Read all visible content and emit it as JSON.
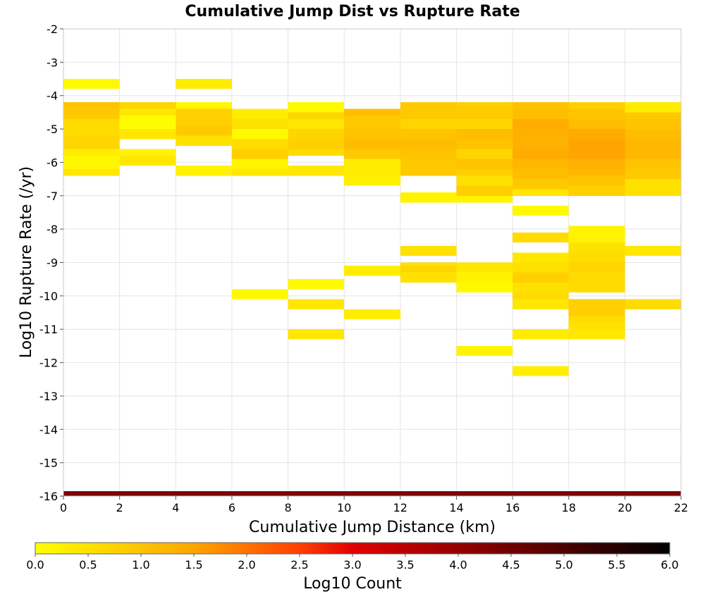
{
  "chart_data": {
    "type": "heatmap",
    "title": "Cumulative Jump Dist vs Rupture Rate",
    "xlabel": "Cumulative Jump Distance (km)",
    "ylabel": "Log10 Rupture Rate (/yr)",
    "xlim": [
      0,
      22
    ],
    "ylim": [
      -16,
      -2
    ],
    "x_bin_width": 2,
    "y_bin_height": 0.2,
    "grid": true,
    "x_ticks": [
      "0",
      "2",
      "4",
      "6",
      "8",
      "10",
      "12",
      "14",
      "16",
      "18",
      "20",
      "22"
    ],
    "y_ticks": [
      "-2",
      "-3",
      "-4",
      "-5",
      "-6",
      "-7",
      "-8",
      "-9",
      "-10",
      "-11",
      "-12",
      "-13",
      "-14",
      "-15",
      "-16"
    ],
    "colorbar": {
      "label": "Log10 Count",
      "range": [
        0,
        6
      ],
      "ticks": [
        "0.0",
        "0.5",
        "1.0",
        "1.5",
        "2.0",
        "2.5",
        "3.0",
        "3.5",
        "4.0",
        "4.5",
        "5.0",
        "5.5",
        "6.0"
      ],
      "stops": [
        {
          "value": 0.0,
          "color": "#ffff00"
        },
        {
          "value": 1.5,
          "color": "#ffa500"
        },
        {
          "value": 2.5,
          "color": "#ff4000"
        },
        {
          "value": 3.0,
          "color": "#e00000"
        },
        {
          "value": 4.5,
          "color": "#700000"
        },
        {
          "value": 6.0,
          "color": "#000000"
        }
      ]
    },
    "columns": [
      {
        "x_start": 0,
        "bins": [
          {
            "y_start": -3.8,
            "y_end": -3.5,
            "value": 0.1
          },
          {
            "y_start": -4.4,
            "y_end": -4.2,
            "value": 1.0
          },
          {
            "y_start": -4.7,
            "y_end": -4.4,
            "value": 0.9
          },
          {
            "y_start": -5.2,
            "y_end": -4.7,
            "value": 0.6
          },
          {
            "y_start": -5.6,
            "y_end": -5.2,
            "value": 0.7
          },
          {
            "y_start": -5.8,
            "y_end": -5.6,
            "value": 0.3
          },
          {
            "y_start": -6.2,
            "y_end": -5.8,
            "value": 0.15
          },
          {
            "y_start": -6.4,
            "y_end": -6.2,
            "value": 0.4
          }
        ]
      },
      {
        "x_start": 2,
        "bins": [
          {
            "y_start": -4.4,
            "y_end": -4.2,
            "value": 0.7
          },
          {
            "y_start": -4.6,
            "y_end": -4.4,
            "value": 0.4
          },
          {
            "y_start": -5.0,
            "y_end": -4.6,
            "value": 0.05
          },
          {
            "y_start": -5.3,
            "y_end": -5.0,
            "value": 0.4
          },
          {
            "y_start": -5.8,
            "y_end": -5.6,
            "value": 0.2
          },
          {
            "y_start": -6.1,
            "y_end": -5.8,
            "value": 0.4
          }
        ]
      },
      {
        "x_start": 4,
        "bins": [
          {
            "y_start": -3.8,
            "y_end": -3.5,
            "value": 0.3
          },
          {
            "y_start": -4.4,
            "y_end": -4.2,
            "value": 0.15
          },
          {
            "y_start": -4.9,
            "y_end": -4.4,
            "value": 0.8
          },
          {
            "y_start": -5.2,
            "y_end": -4.9,
            "value": 0.9
          },
          {
            "y_start": -5.5,
            "y_end": -5.2,
            "value": 0.5
          },
          {
            "y_start": -6.4,
            "y_end": -6.1,
            "value": 0.2
          }
        ]
      },
      {
        "x_start": 6,
        "bins": [
          {
            "y_start": -4.7,
            "y_end": -4.4,
            "value": 0.3
          },
          {
            "y_start": -5.0,
            "y_end": -4.7,
            "value": 0.5
          },
          {
            "y_start": -5.3,
            "y_end": -5.0,
            "value": 0.1
          },
          {
            "y_start": -5.6,
            "y_end": -5.3,
            "value": 0.6
          },
          {
            "y_start": -5.9,
            "y_end": -5.6,
            "value": 0.8
          },
          {
            "y_start": -6.2,
            "y_end": -5.9,
            "value": 0.2
          },
          {
            "y_start": -6.4,
            "y_end": -6.2,
            "value": 0.4
          },
          {
            "y_start": -10.1,
            "y_end": -9.8,
            "value": 0.1
          }
        ]
      },
      {
        "x_start": 8,
        "bins": [
          {
            "y_start": -4.5,
            "y_end": -4.2,
            "value": 0.1
          },
          {
            "y_start": -4.7,
            "y_end": -4.5,
            "value": 0.7
          },
          {
            "y_start": -5.0,
            "y_end": -4.7,
            "value": 0.4
          },
          {
            "y_start": -5.3,
            "y_end": -5.0,
            "value": 0.7
          },
          {
            "y_start": -5.6,
            "y_end": -5.3,
            "value": 0.8
          },
          {
            "y_start": -5.8,
            "y_end": -5.6,
            "value": 0.6
          },
          {
            "y_start": -6.4,
            "y_end": -6.1,
            "value": 0.4
          },
          {
            "y_start": -9.8,
            "y_end": -9.5,
            "value": 0.1
          },
          {
            "y_start": -10.4,
            "y_end": -10.1,
            "value": 0.4
          },
          {
            "y_start": -11.3,
            "y_end": -11.0,
            "value": 0.4
          }
        ]
      },
      {
        "x_start": 10,
        "bins": [
          {
            "y_start": -4.6,
            "y_end": -4.4,
            "value": 1.1
          },
          {
            "y_start": -5.0,
            "y_end": -4.6,
            "value": 0.9
          },
          {
            "y_start": -5.3,
            "y_end": -5.0,
            "value": 1.0
          },
          {
            "y_start": -5.6,
            "y_end": -5.3,
            "value": 1.1
          },
          {
            "y_start": -5.9,
            "y_end": -5.6,
            "value": 0.9
          },
          {
            "y_start": -6.4,
            "y_end": -5.9,
            "value": 0.3
          },
          {
            "y_start": -6.7,
            "y_end": -6.4,
            "value": 0.25
          },
          {
            "y_start": -9.4,
            "y_end": -9.1,
            "value": 0.3
          },
          {
            "y_start": -10.7,
            "y_end": -10.4,
            "value": 0.3
          }
        ]
      },
      {
        "x_start": 12,
        "bins": [
          {
            "y_start": -4.7,
            "y_end": -4.2,
            "value": 0.9
          },
          {
            "y_start": -5.0,
            "y_end": -4.7,
            "value": 0.7
          },
          {
            "y_start": -5.3,
            "y_end": -5.0,
            "value": 1.0
          },
          {
            "y_start": -5.6,
            "y_end": -5.3,
            "value": 1.1
          },
          {
            "y_start": -5.9,
            "y_end": -5.6,
            "value": 1.0
          },
          {
            "y_start": -6.4,
            "y_end": -5.9,
            "value": 0.9
          },
          {
            "y_start": -7.2,
            "y_end": -6.9,
            "value": 0.2
          },
          {
            "y_start": -8.8,
            "y_end": -8.5,
            "value": 0.5
          },
          {
            "y_start": -9.1,
            "y_end": -9.0,
            "value": 0.5
          },
          {
            "y_start": -9.3,
            "y_end": -9.1,
            "value": 0.7
          },
          {
            "y_start": -9.6,
            "y_end": -9.3,
            "value": 0.5
          }
        ]
      },
      {
        "x_start": 14,
        "bins": [
          {
            "y_start": -4.4,
            "y_end": -4.2,
            "value": 0.8
          },
          {
            "y_start": -4.7,
            "y_end": -4.4,
            "value": 0.9
          },
          {
            "y_start": -5.0,
            "y_end": -4.7,
            "value": 0.7
          },
          {
            "y_start": -5.3,
            "y_end": -5.0,
            "value": 1.1
          },
          {
            "y_start": -5.6,
            "y_end": -5.3,
            "value": 1.0
          },
          {
            "y_start": -5.9,
            "y_end": -5.6,
            "value": 0.7
          },
          {
            "y_start": -6.2,
            "y_end": -5.9,
            "value": 1.0
          },
          {
            "y_start": -6.4,
            "y_end": -6.2,
            "value": 0.8
          },
          {
            "y_start": -6.7,
            "y_end": -6.4,
            "value": 0.5
          },
          {
            "y_start": -7.0,
            "y_end": -6.7,
            "value": 0.8
          },
          {
            "y_start": -7.2,
            "y_end": -7.0,
            "value": 0.2
          },
          {
            "y_start": -9.3,
            "y_end": -9.0,
            "value": 0.4
          },
          {
            "y_start": -9.6,
            "y_end": -9.3,
            "value": 0.2
          },
          {
            "y_start": -9.9,
            "y_end": -9.6,
            "value": 0.1
          },
          {
            "y_start": -11.8,
            "y_end": -11.5,
            "value": 0.2
          }
        ]
      },
      {
        "x_start": 16,
        "bins": [
          {
            "y_start": -4.4,
            "y_end": -4.2,
            "value": 1.0
          },
          {
            "y_start": -4.7,
            "y_end": -4.4,
            "value": 1.1
          },
          {
            "y_start": -5.0,
            "y_end": -4.7,
            "value": 1.4
          },
          {
            "y_start": -5.3,
            "y_end": -5.0,
            "value": 1.3
          },
          {
            "y_start": -5.6,
            "y_end": -5.3,
            "value": 1.3
          },
          {
            "y_start": -5.9,
            "y_end": -5.6,
            "value": 1.4
          },
          {
            "y_start": -6.2,
            "y_end": -5.9,
            "value": 1.2
          },
          {
            "y_start": -6.5,
            "y_end": -6.2,
            "value": 1.1
          },
          {
            "y_start": -6.8,
            "y_end": -6.5,
            "value": 0.9
          },
          {
            "y_start": -7.0,
            "y_end": -6.8,
            "value": 0.4
          },
          {
            "y_start": -7.6,
            "y_end": -7.3,
            "value": 0.1
          },
          {
            "y_start": -8.4,
            "y_end": -8.1,
            "value": 0.6
          },
          {
            "y_start": -9.0,
            "y_end": -8.7,
            "value": 0.4
          },
          {
            "y_start": -9.3,
            "y_end": -9.0,
            "value": 0.5
          },
          {
            "y_start": -9.6,
            "y_end": -9.3,
            "value": 0.8
          },
          {
            "y_start": -9.9,
            "y_end": -9.6,
            "value": 0.5
          },
          {
            "y_start": -10.1,
            "y_end": -9.9,
            "value": 0.6
          },
          {
            "y_start": -10.4,
            "y_end": -10.1,
            "value": 0.4
          },
          {
            "y_start": -11.3,
            "y_end": -11.0,
            "value": 0.3
          },
          {
            "y_start": -12.4,
            "y_end": -12.1,
            "value": 0.3
          }
        ]
      },
      {
        "x_start": 18,
        "bins": [
          {
            "y_start": -4.4,
            "y_end": -4.2,
            "value": 0.8
          },
          {
            "y_start": -4.7,
            "y_end": -4.4,
            "value": 1.0
          },
          {
            "y_start": -5.0,
            "y_end": -4.7,
            "value": 1.1
          },
          {
            "y_start": -5.3,
            "y_end": -5.0,
            "value": 1.4
          },
          {
            "y_start": -5.6,
            "y_end": -5.3,
            "value": 1.5
          },
          {
            "y_start": -5.9,
            "y_end": -5.6,
            "value": 1.5
          },
          {
            "y_start": -6.2,
            "y_end": -5.9,
            "value": 1.3
          },
          {
            "y_start": -6.4,
            "y_end": -6.2,
            "value": 1.2
          },
          {
            "y_start": -6.7,
            "y_end": -6.4,
            "value": 1.0
          },
          {
            "y_start": -7.0,
            "y_end": -6.7,
            "value": 0.8
          },
          {
            "y_start": -8.4,
            "y_end": -7.9,
            "value": 0.2
          },
          {
            "y_start": -8.7,
            "y_end": -8.4,
            "value": 0.5
          },
          {
            "y_start": -9.0,
            "y_end": -8.7,
            "value": 0.6
          },
          {
            "y_start": -9.3,
            "y_end": -9.0,
            "value": 0.7
          },
          {
            "y_start": -9.9,
            "y_end": -9.3,
            "value": 0.6
          },
          {
            "y_start": -10.6,
            "y_end": -10.1,
            "value": 0.8
          },
          {
            "y_start": -10.8,
            "y_end": -10.6,
            "value": 0.6
          },
          {
            "y_start": -11.0,
            "y_end": -10.8,
            "value": 0.5
          },
          {
            "y_start": -11.3,
            "y_end": -11.0,
            "value": 0.4
          }
        ]
      },
      {
        "x_start": 20,
        "bins": [
          {
            "y_start": -4.5,
            "y_end": -4.2,
            "value": 0.3
          },
          {
            "y_start": -4.7,
            "y_end": -4.5,
            "value": 0.9
          },
          {
            "y_start": -5.0,
            "y_end": -4.7,
            "value": 1.0
          },
          {
            "y_start": -5.3,
            "y_end": -5.0,
            "value": 1.1
          },
          {
            "y_start": -5.6,
            "y_end": -5.3,
            "value": 1.2
          },
          {
            "y_start": -5.9,
            "y_end": -5.6,
            "value": 1.2
          },
          {
            "y_start": -6.2,
            "y_end": -5.9,
            "value": 1.0
          },
          {
            "y_start": -6.5,
            "y_end": -6.2,
            "value": 0.9
          },
          {
            "y_start": -7.0,
            "y_end": -6.5,
            "value": 0.5
          },
          {
            "y_start": -8.8,
            "y_end": -8.5,
            "value": 0.4
          },
          {
            "y_start": -10.4,
            "y_end": -10.1,
            "value": 0.6
          }
        ]
      }
    ],
    "bottom_band": {
      "y_start": -16,
      "y_end": -15.85,
      "value": 4.3
    }
  }
}
